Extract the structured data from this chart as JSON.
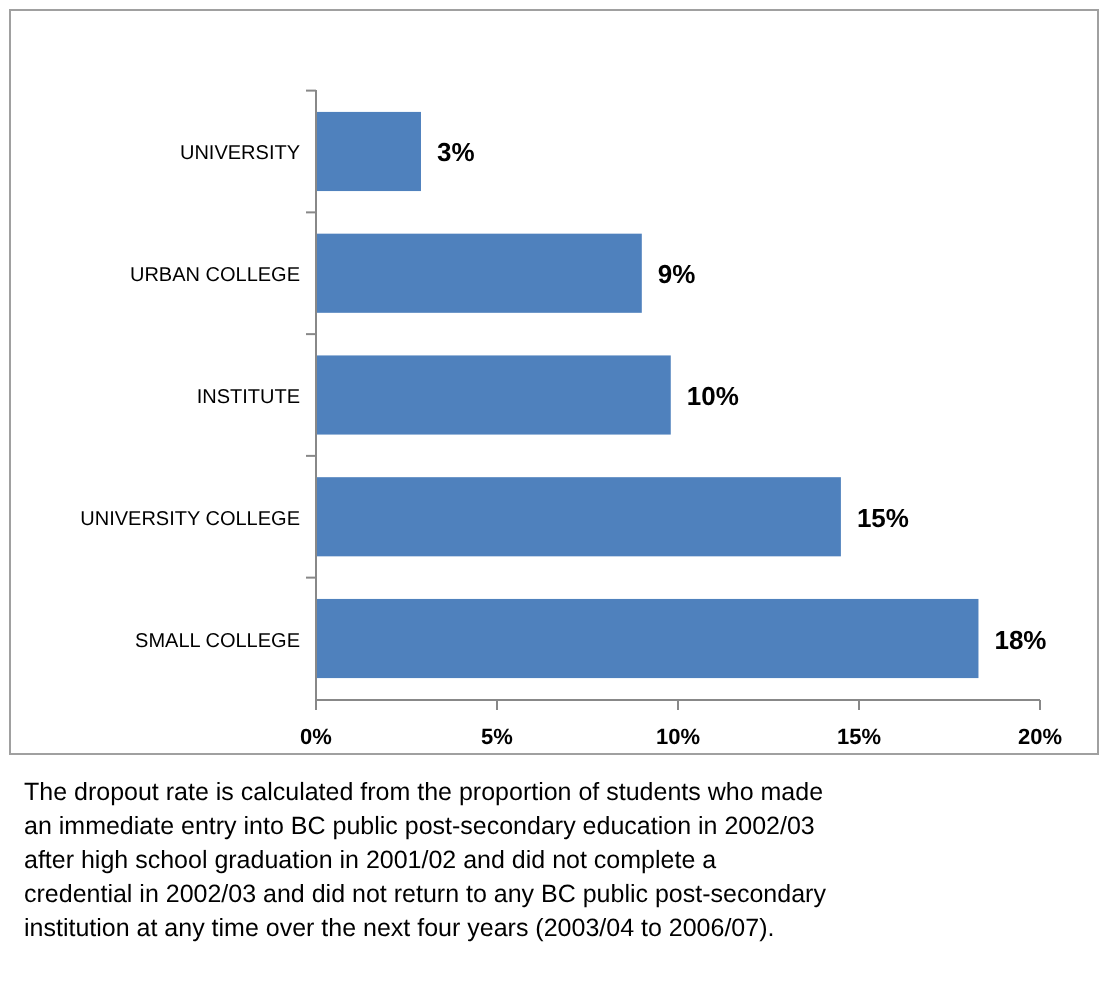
{
  "chart_data": {
    "type": "bar",
    "orientation": "horizontal",
    "categories": [
      "UNIVERSITY",
      "URBAN COLLEGE",
      "INSTITUTE",
      "UNIVERSITY COLLEGE",
      "SMALL COLLEGE"
    ],
    "values": [
      2.9,
      9.0,
      9.8,
      14.5,
      18.3
    ],
    "value_labels": [
      "3%",
      "9%",
      "10%",
      "15%",
      "18%"
    ],
    "color": "#4f81bd",
    "xlim": [
      0,
      20
    ],
    "xticks": [
      {
        "value": 0,
        "label": "0%"
      },
      {
        "value": 5,
        "label": "5%"
      },
      {
        "value": 10,
        "label": "10%"
      },
      {
        "value": 15,
        "label": "15%"
      },
      {
        "value": 20,
        "label": "20%"
      }
    ],
    "grid": false,
    "annotations": [
      "The dropout rate is calculated from the proportion of students who made an immediate entry into BC public post-secondary education in 2002/03 after high school graduation in 2001/02 and did not complete a credential in 2002/03 and did not return to any BC public post-secondary institution at any time over the next four years (2003/04 to 2006/07)."
    ]
  }
}
